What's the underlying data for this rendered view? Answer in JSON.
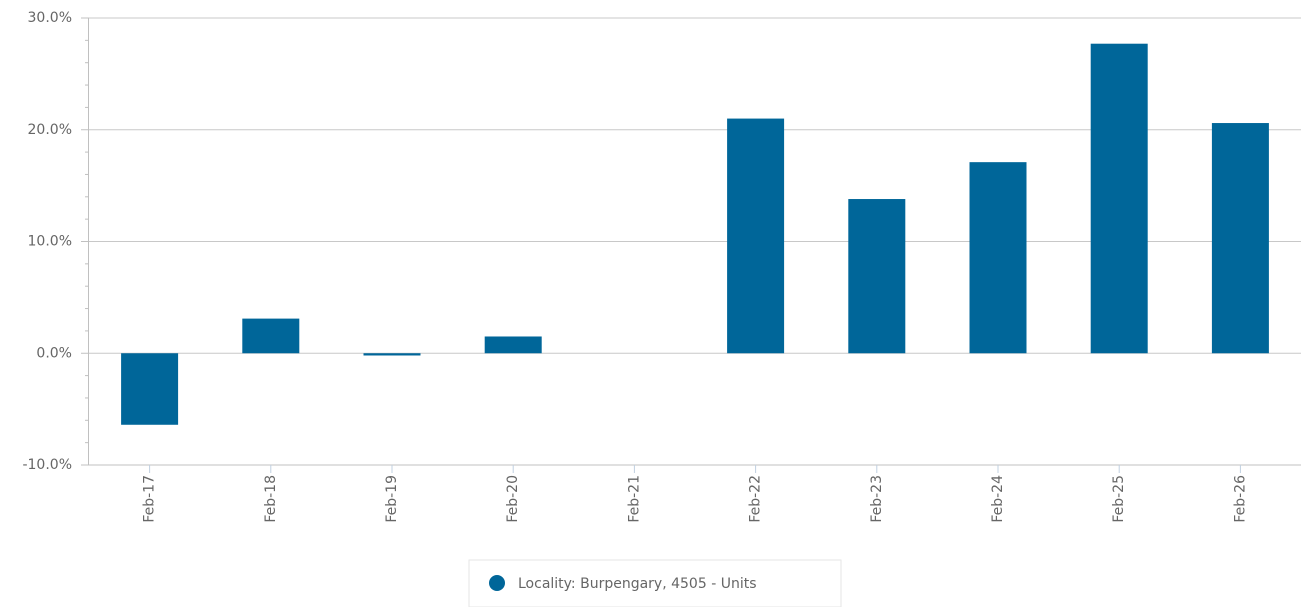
{
  "chart_data": {
    "type": "bar",
    "categories": [
      "Feb-17",
      "Feb-18",
      "Feb-19",
      "Feb-20",
      "Feb-21",
      "Feb-22",
      "Feb-23",
      "Feb-24",
      "Feb-25",
      "Feb-26"
    ],
    "series": [
      {
        "name": "Locality: Burpengary, 4505 - Units",
        "color": "#006699",
        "values": [
          -6.4,
          3.1,
          -0.2,
          1.5,
          null,
          21.0,
          13.8,
          17.1,
          27.7,
          20.6
        ]
      }
    ],
    "ylim": [
      -10,
      30
    ],
    "yticks": [
      {
        "value": -10,
        "label": "-10.0%"
      },
      {
        "value": 0,
        "label": "0.0%"
      },
      {
        "value": 10,
        "label": "10.0%"
      },
      {
        "value": 20,
        "label": "20.0%"
      },
      {
        "value": 30,
        "label": "30.0%"
      }
    ],
    "grid": true
  }
}
